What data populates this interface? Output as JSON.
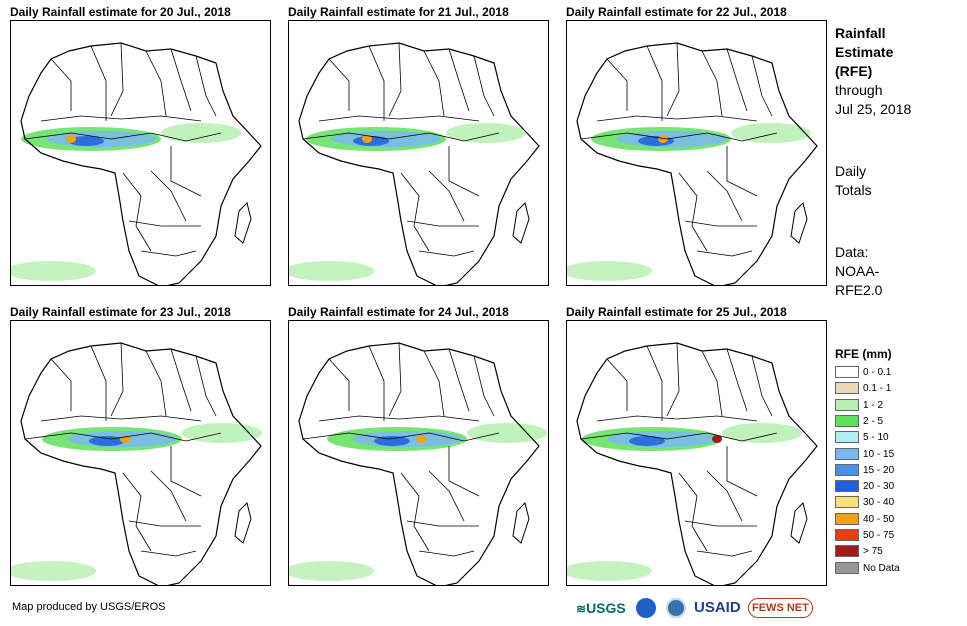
{
  "panels": [
    {
      "title": "Daily Rainfall estimate for 20 Jul., 2018"
    },
    {
      "title": "Daily Rainfall estimate for 21 Jul., 2018"
    },
    {
      "title": "Daily Rainfall estimate for 22 Jul., 2018"
    },
    {
      "title": "Daily Rainfall estimate for 23 Jul., 2018"
    },
    {
      "title": "Daily Rainfall estimate for 24 Jul., 2018"
    },
    {
      "title": "Daily Rainfall estimate for 25 Jul., 2018"
    }
  ],
  "side": {
    "line1": "Rainfall",
    "line2": "Estimate",
    "line3": "(RFE)",
    "line4": "through",
    "line5": "Jul 25, 2018",
    "daily1": "Daily",
    "daily2": "Totals",
    "data1": "Data:",
    "data2": "NOAA-",
    "data3": "RFE2.0"
  },
  "legend": {
    "title": "RFE (mm)",
    "items": [
      {
        "label": "0 - 0.1",
        "color": "#ffffff"
      },
      {
        "label": "0.1 - 1",
        "color": "#ead9b9"
      },
      {
        "label": "1 - 2",
        "color": "#b5f0b0"
      },
      {
        "label": "2 - 5",
        "color": "#5fe05a"
      },
      {
        "label": "5 - 10",
        "color": "#b0eef5"
      },
      {
        "label": "10 - 15",
        "color": "#7ab8f2"
      },
      {
        "label": "15 - 20",
        "color": "#4a90e8"
      },
      {
        "label": "20 - 30",
        "color": "#1f5fe0"
      },
      {
        "label": "30 - 40",
        "color": "#f7e27a"
      },
      {
        "label": "40 - 50",
        "color": "#f2a20e"
      },
      {
        "label": "50 - 75",
        "color": "#f23a0c"
      },
      {
        "label": "> 75",
        "color": "#a31a1a"
      },
      {
        "label": "No Data",
        "color": "#999999"
      }
    ]
  },
  "footer": "Map produced by USGS/EROS",
  "logos": {
    "usgs": "USGS",
    "usaid": "USAID",
    "fews": "FEWS NET"
  }
}
